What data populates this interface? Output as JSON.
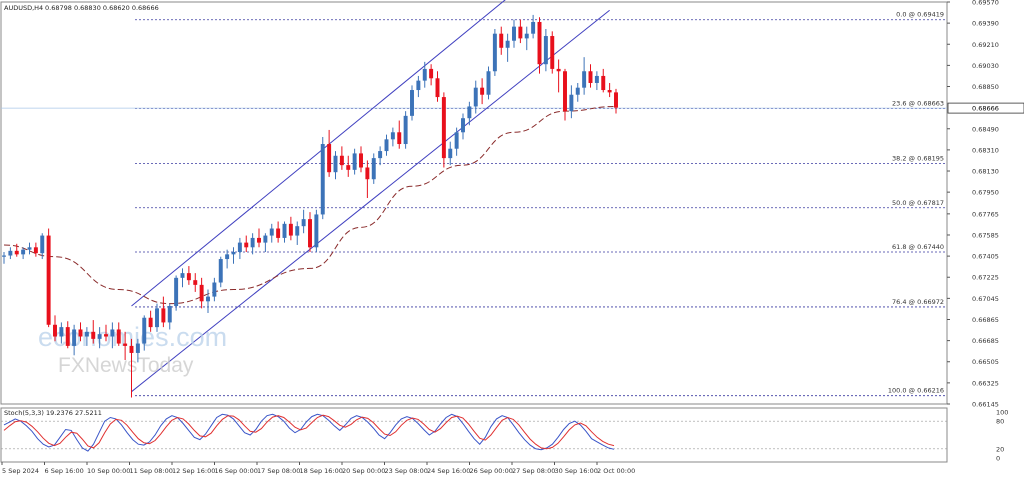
{
  "header": {
    "symbol": "AUDUSD,H4",
    "ohlc": "0.68798 0.68830 0.68620 0.68666"
  },
  "watermark": {
    "brand": "economies.com",
    "sub": "FXNewsToday"
  },
  "colors": {
    "bull": "#3c73b8",
    "bear": "#e8101c",
    "channel": "#4040c0",
    "fib": "#3a3aa0",
    "ma": "#8a2b2b",
    "stoch_main": "#3a55c8",
    "stoch_signal": "#e03030",
    "axis": "#555555",
    "grid": "#cccccc"
  },
  "chart_data": [
    {
      "type": "candlestick",
      "title": "AUDUSD,H4",
      "ylim": [
        0.66145,
        0.6957
      ],
      "y_ticks": [
        "0.69570",
        "0.69390",
        "0.69210",
        "0.69030",
        "0.68850",
        "0.68666",
        "0.68490",
        "0.68310",
        "0.68130",
        "0.67950",
        "0.67765",
        "0.67585",
        "0.67405",
        "0.67225",
        "0.67045",
        "0.66865",
        "0.66685",
        "0.66505",
        "0.66325",
        "0.66145"
      ],
      "current_price": "0.68666",
      "x_labels": [
        "5 Sep 2024",
        "6 Sep 16:00",
        "10 Sep 00:00",
        "11 Sep 08:00",
        "12 Sep 16:00",
        "16 Sep 00:00",
        "17 Sep 08:00",
        "18 Sep 16:00",
        "20 Sep 00:00",
        "23 Sep 08:00",
        "24 Sep 16:00",
        "26 Sep 00:00",
        "27 Sep 08:00",
        "30 Sep 16:00",
        "2 Oct 00:00"
      ],
      "candles": [
        [
          0.674,
          0.6744,
          0.6734,
          0.6741
        ],
        [
          0.6741,
          0.6748,
          0.6738,
          0.6745
        ],
        [
          0.6745,
          0.6751,
          0.674,
          0.6742
        ],
        [
          0.6742,
          0.6748,
          0.6738,
          0.6746
        ],
        [
          0.6746,
          0.6752,
          0.6742,
          0.6748
        ],
        [
          0.6748,
          0.6752,
          0.674,
          0.6743
        ],
        [
          0.6743,
          0.676,
          0.6738,
          0.6758
        ],
        [
          0.6758,
          0.6764,
          0.668,
          0.6682
        ],
        [
          0.6682,
          0.669,
          0.6668,
          0.6672
        ],
        [
          0.6672,
          0.6684,
          0.6666,
          0.668
        ],
        [
          0.668,
          0.6685,
          0.6662,
          0.6664
        ],
        [
          0.6664,
          0.6682,
          0.6656,
          0.6678
        ],
        [
          0.6678,
          0.6684,
          0.6668,
          0.6672
        ],
        [
          0.6672,
          0.668,
          0.6664,
          0.6676
        ],
        [
          0.6676,
          0.6686,
          0.6666,
          0.667
        ],
        [
          0.667,
          0.668,
          0.6662,
          0.6674
        ],
        [
          0.6674,
          0.6682,
          0.6668,
          0.6672
        ],
        [
          0.6672,
          0.6684,
          0.6662,
          0.6678
        ],
        [
          0.6678,
          0.6684,
          0.6664,
          0.6666
        ],
        [
          0.6666,
          0.6676,
          0.6652,
          0.6664
        ],
        [
          0.6664,
          0.667,
          0.662,
          0.6658
        ],
        [
          0.6658,
          0.667,
          0.665,
          0.6666
        ],
        [
          0.6666,
          0.669,
          0.666,
          0.6688
        ],
        [
          0.6688,
          0.6694,
          0.6676,
          0.668
        ],
        [
          0.668,
          0.67,
          0.6676,
          0.6696
        ],
        [
          0.6696,
          0.6706,
          0.668,
          0.6684
        ],
        [
          0.6684,
          0.67,
          0.6678,
          0.6698
        ],
        [
          0.6698,
          0.6724,
          0.6694,
          0.6722
        ],
        [
          0.6722,
          0.673,
          0.6714,
          0.6726
        ],
        [
          0.6726,
          0.6732,
          0.6716,
          0.672
        ],
        [
          0.672,
          0.6726,
          0.671,
          0.6716
        ],
        [
          0.6716,
          0.6722,
          0.6696,
          0.6702
        ],
        [
          0.6702,
          0.6712,
          0.6692,
          0.6706
        ],
        [
          0.6706,
          0.6722,
          0.6702,
          0.6718
        ],
        [
          0.6718,
          0.674,
          0.6714,
          0.6738
        ],
        [
          0.6738,
          0.6746,
          0.673,
          0.6742
        ],
        [
          0.6742,
          0.6748,
          0.6734,
          0.6744
        ],
        [
          0.6744,
          0.6756,
          0.6738,
          0.6752
        ],
        [
          0.6752,
          0.6758,
          0.6744,
          0.6748
        ],
        [
          0.6748,
          0.676,
          0.6742,
          0.6756
        ],
        [
          0.6756,
          0.6764,
          0.6748,
          0.6752
        ],
        [
          0.6752,
          0.676,
          0.6744,
          0.6758
        ],
        [
          0.6758,
          0.6768,
          0.6752,
          0.6764
        ],
        [
          0.6764,
          0.677,
          0.6752,
          0.6756
        ],
        [
          0.6756,
          0.677,
          0.6752,
          0.6768
        ],
        [
          0.6768,
          0.6774,
          0.6754,
          0.6758
        ],
        [
          0.6758,
          0.677,
          0.675,
          0.6766
        ],
        [
          0.6766,
          0.678,
          0.676,
          0.6772
        ],
        [
          0.6772,
          0.6778,
          0.6744,
          0.6748
        ],
        [
          0.6748,
          0.678,
          0.6744,
          0.6776
        ],
        [
          0.6776,
          0.6842,
          0.6772,
          0.6836
        ],
        [
          0.6836,
          0.6848,
          0.6808,
          0.6812
        ],
        [
          0.6812,
          0.683,
          0.6806,
          0.6826
        ],
        [
          0.6826,
          0.6834,
          0.6814,
          0.6818
        ],
        [
          0.6818,
          0.6826,
          0.6808,
          0.6814
        ],
        [
          0.6814,
          0.6832,
          0.681,
          0.6828
        ],
        [
          0.6828,
          0.6834,
          0.6812,
          0.6816
        ],
        [
          0.6816,
          0.6822,
          0.679,
          0.6806
        ],
        [
          0.6806,
          0.6828,
          0.6802,
          0.6824
        ],
        [
          0.6824,
          0.6834,
          0.6818,
          0.683
        ],
        [
          0.683,
          0.6844,
          0.6826,
          0.684
        ],
        [
          0.684,
          0.685,
          0.6834,
          0.6846
        ],
        [
          0.6846,
          0.6856,
          0.6832,
          0.6836
        ],
        [
          0.6836,
          0.6864,
          0.6832,
          0.686
        ],
        [
          0.686,
          0.6886,
          0.6856,
          0.6882
        ],
        [
          0.6882,
          0.6894,
          0.6876,
          0.689
        ],
        [
          0.689,
          0.6906,
          0.6884,
          0.69
        ],
        [
          0.69,
          0.6904,
          0.6886,
          0.6892
        ],
        [
          0.6892,
          0.6898,
          0.6872,
          0.6876
        ],
        [
          0.6876,
          0.688,
          0.6816,
          0.6824
        ],
        [
          0.6824,
          0.6838,
          0.6818,
          0.6832
        ],
        [
          0.6832,
          0.685,
          0.6826,
          0.6846
        ],
        [
          0.6846,
          0.6862,
          0.684,
          0.6858
        ],
        [
          0.6858,
          0.6872,
          0.6852,
          0.6868
        ],
        [
          0.6868,
          0.689,
          0.6862,
          0.6884
        ],
        [
          0.6884,
          0.6892,
          0.687,
          0.6878
        ],
        [
          0.6878,
          0.6902,
          0.6874,
          0.6898
        ],
        [
          0.6898,
          0.6934,
          0.6894,
          0.693
        ],
        [
          0.693,
          0.6936,
          0.6912,
          0.6918
        ],
        [
          0.6918,
          0.693,
          0.6906,
          0.6924
        ],
        [
          0.6924,
          0.6942,
          0.6918,
          0.6936
        ],
        [
          0.6936,
          0.6942,
          0.6922,
          0.6926
        ],
        [
          0.6926,
          0.6936,
          0.6916,
          0.693
        ],
        [
          0.693,
          0.6946,
          0.6926,
          0.694
        ],
        [
          0.694,
          0.6944,
          0.6896,
          0.6904
        ],
        [
          0.6904,
          0.6934,
          0.6898,
          0.6928
        ],
        [
          0.6928,
          0.6932,
          0.6896,
          0.69
        ],
        [
          0.69,
          0.6908,
          0.688,
          0.6898
        ],
        [
          0.6898,
          0.69,
          0.6856,
          0.6864
        ],
        [
          0.6864,
          0.6886,
          0.6858,
          0.6878
        ],
        [
          0.6878,
          0.6888,
          0.6872,
          0.6884
        ],
        [
          0.6884,
          0.691,
          0.6878,
          0.6898
        ],
        [
          0.6898,
          0.6904,
          0.6884,
          0.6888
        ],
        [
          0.6888,
          0.6898,
          0.6882,
          0.6894
        ],
        [
          0.6894,
          0.69,
          0.688,
          0.6882
        ],
        [
          0.6882,
          0.6888,
          0.6876,
          0.688
        ],
        [
          0.688,
          0.6883,
          0.6862,
          0.6867
        ]
      ],
      "moving_average": [
        [
          0,
          0.675
        ],
        [
          8,
          0.674
        ],
        [
          18,
          0.6712
        ],
        [
          26,
          0.67
        ],
        [
          36,
          0.6712
        ],
        [
          48,
          0.673
        ],
        [
          56,
          0.6765
        ],
        [
          64,
          0.68
        ],
        [
          72,
          0.6818
        ],
        [
          80,
          0.6846
        ],
        [
          88,
          0.6864
        ],
        [
          96,
          0.6868
        ]
      ],
      "channel": {
        "upper": [
          [
            20,
            0.6698
          ],
          [
            80,
            0.6965
          ]
        ],
        "lower": [
          [
            20,
            0.6625
          ],
          [
            95,
            0.695
          ]
        ]
      },
      "fibonacci": [
        {
          "level": "0.0",
          "price": 0.69419,
          "label": "0.0 @ 0.69419"
        },
        {
          "level": "23.6",
          "price": 0.68663,
          "label": "23.6 @ 0.68663"
        },
        {
          "level": "38.2",
          "price": 0.68195,
          "label": "38.2 @ 0.68195"
        },
        {
          "level": "50.0",
          "price": 0.67817,
          "label": "50.0 @ 0.67817"
        },
        {
          "level": "61.8",
          "price": 0.6744,
          "label": "61.8 @ 0.67440"
        },
        {
          "level": "76.4",
          "price": 0.66972,
          "label": "76.4 @ 0.66972"
        },
        {
          "level": "100.0",
          "price": 0.66216,
          "label": "100.0 @ 0.66216"
        }
      ]
    },
    {
      "type": "line",
      "title": "Stoch(5,3,3) 19.2376 27.5211",
      "ylim": [
        0,
        100
      ],
      "y_ticks": [
        "100",
        "80",
        "20",
        "0"
      ],
      "levels": [
        80,
        20
      ],
      "series": [
        {
          "values": [
            72,
            78,
            85,
            80,
            70,
            58,
            42,
            30,
            24,
            28,
            45,
            62,
            60,
            40,
            22,
            15,
            30,
            55,
            80,
            88,
            85,
            72,
            55,
            40,
            30,
            28,
            35,
            50,
            70,
            85,
            92,
            88,
            75,
            60,
            45,
            40,
            52,
            70,
            88,
            95,
            93,
            85,
            70,
            55,
            50,
            62,
            80,
            92,
            95,
            90,
            80,
            65,
            55,
            62,
            78,
            90,
            95,
            92,
            82,
            70,
            60,
            72,
            86,
            92,
            88,
            78,
            65,
            50,
            42,
            55,
            72,
            85,
            90,
            86,
            75,
            62,
            50,
            58,
            74,
            88,
            95,
            90,
            75,
            58,
            42,
            30,
            45,
            68,
            85,
            92,
            88,
            72,
            55,
            40,
            28,
            20,
            18,
            22,
            30,
            45,
            62,
            75,
            80,
            72,
            58,
            42,
            35,
            28,
            22,
            19
          ]
        },
        {
          "values": [
            60,
            70,
            79,
            81,
            78,
            69,
            57,
            43,
            32,
            27,
            32,
            45,
            56,
            54,
            41,
            26,
            22,
            33,
            55,
            74,
            84,
            82,
            71,
            56,
            42,
            33,
            31,
            38,
            52,
            68,
            82,
            88,
            85,
            74,
            60,
            48,
            46,
            54,
            70,
            84,
            92,
            91,
            83,
            70,
            58,
            56,
            64,
            78,
            89,
            92,
            88,
            78,
            67,
            61,
            65,
            77,
            88,
            93,
            90,
            81,
            71,
            67,
            73,
            83,
            89,
            86,
            77,
            64,
            52,
            49,
            57,
            71,
            82,
            87,
            84,
            74,
            62,
            56,
            64,
            77,
            88,
            91,
            87,
            74,
            58,
            43,
            39,
            50,
            66,
            82,
            88,
            84,
            72,
            56,
            41,
            30,
            22,
            20,
            23,
            32,
            46,
            61,
            72,
            76,
            70,
            57,
            45,
            36,
            30,
            27
          ]
        }
      ]
    }
  ]
}
